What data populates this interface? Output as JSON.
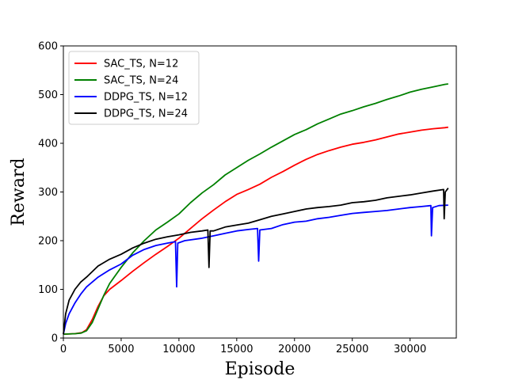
{
  "chart_data": {
    "type": "line",
    "xlabel": "Episode",
    "ylabel": "Reward",
    "xlim": [
      0,
      34000
    ],
    "ylim": [
      0,
      600
    ],
    "xticks": [
      0,
      5000,
      10000,
      15000,
      20000,
      25000,
      30000
    ],
    "yticks": [
      0,
      100,
      200,
      300,
      400,
      500,
      600
    ],
    "grid": false,
    "legend_position": "top-left",
    "series": [
      {
        "name": "SAC_TS, N=12",
        "color": "#ff0000",
        "points": [
          [
            0,
            8
          ],
          [
            1000,
            9
          ],
          [
            1600,
            11
          ],
          [
            2000,
            17
          ],
          [
            2500,
            38
          ],
          [
            3000,
            65
          ],
          [
            3500,
            87
          ],
          [
            4000,
            100
          ],
          [
            5000,
            118
          ],
          [
            6000,
            137
          ],
          [
            7000,
            155
          ],
          [
            8000,
            172
          ],
          [
            9000,
            188
          ],
          [
            10000,
            205
          ],
          [
            11000,
            225
          ],
          [
            12000,
            245
          ],
          [
            13000,
            263
          ],
          [
            14000,
            280
          ],
          [
            15000,
            295
          ],
          [
            16000,
            305
          ],
          [
            17000,
            316
          ],
          [
            18000,
            330
          ],
          [
            19000,
            342
          ],
          [
            20000,
            355
          ],
          [
            21000,
            367
          ],
          [
            22000,
            377
          ],
          [
            23000,
            385
          ],
          [
            24000,
            392
          ],
          [
            25000,
            398
          ],
          [
            26000,
            402
          ],
          [
            27000,
            407
          ],
          [
            28000,
            413
          ],
          [
            29000,
            419
          ],
          [
            30000,
            423
          ],
          [
            31000,
            427
          ],
          [
            32000,
            430
          ],
          [
            33000,
            432
          ],
          [
            33300,
            433
          ]
        ]
      },
      {
        "name": "SAC_TS, N=24",
        "color": "#008000",
        "points": [
          [
            0,
            8
          ],
          [
            1000,
            9
          ],
          [
            1500,
            10
          ],
          [
            2000,
            15
          ],
          [
            2500,
            32
          ],
          [
            3000,
            60
          ],
          [
            3500,
            88
          ],
          [
            4000,
            112
          ],
          [
            5000,
            145
          ],
          [
            6000,
            175
          ],
          [
            7000,
            200
          ],
          [
            8000,
            222
          ],
          [
            9000,
            238
          ],
          [
            10000,
            255
          ],
          [
            11000,
            278
          ],
          [
            12000,
            298
          ],
          [
            13000,
            315
          ],
          [
            14000,
            335
          ],
          [
            15000,
            350
          ],
          [
            16000,
            365
          ],
          [
            17000,
            378
          ],
          [
            18000,
            392
          ],
          [
            19000,
            405
          ],
          [
            20000,
            418
          ],
          [
            21000,
            428
          ],
          [
            22000,
            440
          ],
          [
            23000,
            450
          ],
          [
            24000,
            460
          ],
          [
            25000,
            467
          ],
          [
            26000,
            475
          ],
          [
            27000,
            482
          ],
          [
            28000,
            490
          ],
          [
            29000,
            497
          ],
          [
            30000,
            505
          ],
          [
            31000,
            511
          ],
          [
            32000,
            516
          ],
          [
            33000,
            521
          ],
          [
            33300,
            522
          ]
        ]
      },
      {
        "name": "DDPG_TS, N=12",
        "color": "#0000ff",
        "points": [
          [
            0,
            8
          ],
          [
            200,
            30
          ],
          [
            500,
            50
          ],
          [
            1000,
            72
          ],
          [
            1500,
            90
          ],
          [
            2000,
            105
          ],
          [
            3000,
            125
          ],
          [
            4000,
            140
          ],
          [
            5000,
            152
          ],
          [
            6000,
            170
          ],
          [
            7000,
            182
          ],
          [
            8000,
            190
          ],
          [
            9000,
            195
          ],
          [
            9700,
            198
          ],
          [
            9800,
            105
          ],
          [
            9900,
            195
          ],
          [
            10500,
            200
          ],
          [
            12000,
            205
          ],
          [
            13000,
            210
          ],
          [
            14000,
            215
          ],
          [
            15000,
            220
          ],
          [
            16000,
            223
          ],
          [
            16800,
            225
          ],
          [
            16900,
            158
          ],
          [
            17000,
            222
          ],
          [
            18000,
            225
          ],
          [
            19000,
            233
          ],
          [
            20000,
            238
          ],
          [
            21000,
            240
          ],
          [
            22000,
            245
          ],
          [
            23000,
            248
          ],
          [
            24000,
            252
          ],
          [
            25000,
            256
          ],
          [
            26000,
            258
          ],
          [
            27000,
            260
          ],
          [
            28000,
            262
          ],
          [
            29000,
            265
          ],
          [
            30000,
            268
          ],
          [
            31000,
            270
          ],
          [
            31800,
            272
          ],
          [
            31850,
            210
          ],
          [
            31950,
            268
          ],
          [
            32500,
            272
          ],
          [
            33300,
            273
          ]
        ]
      },
      {
        "name": "DDPG_TS, N=24",
        "color": "#000000",
        "points": [
          [
            0,
            8
          ],
          [
            200,
            50
          ],
          [
            500,
            78
          ],
          [
            1000,
            100
          ],
          [
            1500,
            115
          ],
          [
            2000,
            125
          ],
          [
            3000,
            148
          ],
          [
            4000,
            162
          ],
          [
            5000,
            172
          ],
          [
            6000,
            185
          ],
          [
            7000,
            195
          ],
          [
            8000,
            203
          ],
          [
            9000,
            208
          ],
          [
            10000,
            212
          ],
          [
            11000,
            217
          ],
          [
            12000,
            220
          ],
          [
            12500,
            222
          ],
          [
            12600,
            145
          ],
          [
            12700,
            220
          ],
          [
            13000,
            220
          ],
          [
            14000,
            228
          ],
          [
            15000,
            232
          ],
          [
            16000,
            236
          ],
          [
            17000,
            243
          ],
          [
            18000,
            250
          ],
          [
            19000,
            255
          ],
          [
            20000,
            260
          ],
          [
            21000,
            265
          ],
          [
            22000,
            268
          ],
          [
            23000,
            270
          ],
          [
            24000,
            273
          ],
          [
            25000,
            278
          ],
          [
            26000,
            280
          ],
          [
            27000,
            283
          ],
          [
            28000,
            288
          ],
          [
            29000,
            291
          ],
          [
            30000,
            294
          ],
          [
            31000,
            298
          ],
          [
            32000,
            302
          ],
          [
            32900,
            305
          ],
          [
            32950,
            245
          ],
          [
            33050,
            300
          ],
          [
            33300,
            308
          ]
        ]
      }
    ]
  }
}
